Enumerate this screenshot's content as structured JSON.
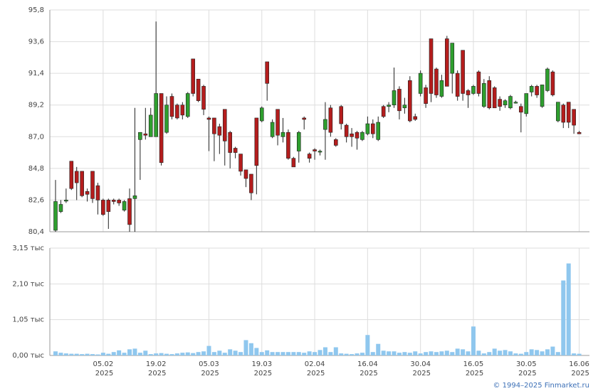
{
  "chart_data": [
    {
      "type": "candlestick",
      "up_color": "#2e9e2e",
      "down_color": "#b41d1d",
      "ylim": [
        80.4,
        95.8
      ],
      "yticks": [
        {
          "value": 80.4,
          "label": "80,4"
        },
        {
          "value": 82.6,
          "label": "82,6"
        },
        {
          "value": 84.8,
          "label": "84,8"
        },
        {
          "value": 87.0,
          "label": "87,0"
        },
        {
          "value": 89.2,
          "label": "89,2"
        },
        {
          "value": 91.4,
          "label": "91,4"
        },
        {
          "value": 93.6,
          "label": "93,6"
        },
        {
          "value": 95.8,
          "label": "95,8"
        }
      ],
      "open": [
        80.5,
        81.8,
        82.6,
        85.3,
        84.6,
        84.6,
        83.2,
        84.6,
        83.6,
        82.6,
        82.6,
        82.6,
        82.6,
        81.9,
        82.7,
        82.7,
        86.8,
        87.2,
        87.0,
        87.0,
        90.0,
        87.3,
        89.8,
        89.2,
        89.2,
        88.4,
        92.4,
        91.0,
        90.5,
        88.3,
        88.3,
        87.7,
        88.9,
        87.3,
        86.2,
        85.8,
        84.7,
        84.4,
        88.3,
        88.1,
        92.2,
        87.0,
        88.9,
        87.0,
        87.3,
        85.5,
        86.0,
        88.3,
        85.8,
        86.1,
        86.0,
        87.5,
        89.0,
        86.8,
        89.1,
        87.8,
        87.2,
        87.3,
        86.8,
        87.2,
        87.9,
        86.8,
        89.1,
        89.1,
        89.2,
        90.3,
        89.0,
        90.9,
        88.4,
        90.0,
        90.4,
        93.8,
        91.7,
        89.8,
        93.8,
        91.4,
        91.4,
        93.0,
        90.2,
        90.0,
        91.5,
        89.1,
        90.9,
        90.4,
        89.6,
        89.2,
        89.0,
        89.4,
        89.1,
        88.6,
        90.1,
        90.5,
        89.1,
        90.2,
        91.5,
        88.1,
        89.2,
        89.4,
        88.9,
        87.3
      ],
      "high": [
        84.0,
        82.6,
        83.4,
        85.3,
        84.9,
        84.6,
        83.4,
        84.6,
        83.8,
        82.7,
        82.7,
        82.7,
        82.7,
        82.6,
        83.4,
        89.0,
        87.3,
        89.0,
        89.0,
        95.0,
        90.0,
        89.8,
        90.0,
        89.3,
        89.4,
        90.1,
        92.4,
        91.0,
        90.6,
        88.4,
        88.3,
        87.9,
        88.9,
        87.4,
        86.3,
        85.8,
        84.7,
        84.4,
        88.3,
        89.1,
        92.2,
        88.2,
        88.9,
        88.3,
        87.5,
        85.6,
        87.4,
        88.4,
        85.9,
        86.2,
        86.1,
        89.4,
        89.2,
        86.9,
        89.2,
        87.9,
        87.6,
        87.4,
        87.4,
        88.4,
        88.2,
        88.4,
        89.2,
        89.4,
        91.8,
        90.5,
        89.7,
        91.2,
        88.6,
        91.6,
        90.6,
        93.8,
        91.8,
        91.3,
        94.0,
        93.5,
        91.6,
        93.0,
        90.3,
        90.6,
        91.6,
        91.0,
        91.2,
        90.5,
        89.8,
        89.6,
        89.9,
        89.5,
        89.3,
        90.0,
        90.6,
        90.6,
        90.6,
        91.8,
        91.6,
        89.4,
        89.3,
        89.4,
        88.9,
        87.4
      ],
      "low": [
        80.4,
        81.7,
        82.4,
        83.3,
        82.6,
        82.8,
        82.5,
        82.4,
        81.6,
        81.5,
        80.6,
        82.3,
        82.2,
        81.8,
        80.4,
        80.4,
        84.0,
        86.8,
        87.0,
        87.0,
        85.0,
        87.2,
        88.2,
        88.2,
        88.2,
        88.3,
        89.8,
        89.4,
        88.5,
        86.0,
        85.3,
        85.8,
        85.0,
        84.8,
        85.5,
        84.3,
        83.5,
        82.6,
        83.0,
        88.0,
        89.5,
        86.9,
        86.4,
        86.6,
        85.4,
        84.9,
        85.2,
        87.5,
        85.2,
        85.4,
        85.7,
        85.4,
        87.0,
        86.3,
        87.5,
        86.6,
        86.3,
        86.1,
        86.7,
        87.1,
        86.9,
        86.7,
        88.3,
        88.7,
        89.0,
        88.2,
        88.6,
        88.0,
        88.1,
        89.8,
        89.0,
        89.4,
        89.7,
        89.7,
        90.5,
        90.0,
        89.5,
        89.5,
        89.0,
        89.9,
        89.8,
        89.0,
        88.9,
        89.0,
        88.8,
        89.0,
        88.9,
        89.3,
        87.3,
        88.4,
        89.8,
        89.7,
        89.0,
        90.1,
        89.8,
        88.0,
        87.6,
        87.6,
        87.2,
        87.2
      ],
      "close": [
        82.5,
        82.3,
        82.6,
        83.4,
        83.8,
        82.9,
        83.0,
        82.7,
        82.6,
        81.6,
        81.8,
        82.5,
        82.4,
        82.5,
        80.9,
        82.9,
        87.3,
        87.1,
        88.5,
        90.0,
        85.2,
        89.2,
        88.4,
        88.3,
        88.5,
        90.0,
        90.0,
        89.5,
        88.9,
        88.2,
        87.2,
        87.1,
        86.7,
        85.9,
        85.9,
        84.6,
        84.1,
        83.1,
        85.0,
        89.0,
        90.7,
        88.0,
        87.1,
        87.3,
        85.5,
        84.9,
        87.3,
        88.2,
        85.5,
        86.0,
        86.0,
        88.2,
        87.3,
        86.4,
        87.9,
        87.0,
        87.0,
        86.9,
        87.3,
        87.9,
        87.2,
        88.0,
        88.4,
        89.2,
        90.2,
        88.8,
        89.2,
        88.1,
        88.2,
        91.4,
        89.3,
        90.0,
        89.9,
        90.9,
        90.5,
        93.5,
        89.8,
        90.0,
        89.9,
        90.5,
        90.0,
        90.7,
        89.0,
        89.0,
        89.1,
        89.5,
        89.8,
        89.4,
        88.7,
        90.0,
        90.5,
        89.9,
        90.6,
        91.7,
        89.9,
        89.4,
        88.0,
        88.0,
        87.8,
        87.2
      ]
    },
    {
      "type": "bar",
      "color": "#8fc7ee",
      "ylim": [
        0,
        3.15
      ],
      "yticks": [
        {
          "value": 0,
          "label": "0,00 тыс"
        },
        {
          "value": 1.05,
          "label": "1,05 тыс"
        },
        {
          "value": 2.1,
          "label": "2,10 тыс"
        },
        {
          "value": 3.15,
          "label": "3,15 тыс"
        }
      ],
      "values": [
        0.12,
        0.08,
        0.06,
        0.05,
        0.05,
        0.04,
        0.05,
        0.04,
        0.03,
        0.08,
        0.05,
        0.1,
        0.15,
        0.08,
        0.18,
        0.2,
        0.08,
        0.14,
        0.04,
        0.06,
        0.07,
        0.05,
        0.04,
        0.06,
        0.08,
        0.09,
        0.07,
        0.1,
        0.12,
        0.28,
        0.1,
        0.14,
        0.08,
        0.18,
        0.14,
        0.1,
        0.45,
        0.36,
        0.22,
        0.1,
        0.15,
        0.1,
        0.1,
        0.1,
        0.1,
        0.1,
        0.1,
        0.08,
        0.12,
        0.1,
        0.16,
        0.24,
        0.1,
        0.24,
        0.06,
        0.05,
        0.04,
        0.06,
        0.08,
        0.6,
        0.1,
        0.34,
        0.14,
        0.12,
        0.12,
        0.08,
        0.1,
        0.08,
        0.12,
        0.06,
        0.1,
        0.12,
        0.1,
        0.12,
        0.14,
        0.1,
        0.2,
        0.18,
        0.12,
        0.85,
        0.14,
        0.06,
        0.1,
        0.2,
        0.14,
        0.16,
        0.12,
        0.06,
        0.05,
        0.1,
        0.18,
        0.16,
        0.12,
        0.18,
        0.26,
        0.1,
        2.2,
        2.7,
        0.06,
        0.05
      ],
      "categories": [
        null,
        null,
        null,
        null,
        null,
        null,
        null,
        null,
        null,
        "05.02 2025",
        null,
        null,
        null,
        null,
        null,
        null,
        null,
        null,
        null,
        "19.02 2025",
        null,
        null,
        null,
        null,
        null,
        null,
        null,
        null,
        null,
        "05.03 2025",
        null,
        null,
        null,
        null,
        null,
        null,
        null,
        null,
        null,
        "19.03 2025",
        null,
        null,
        null,
        null,
        null,
        null,
        null,
        null,
        null,
        "02.04 2025",
        null,
        null,
        null,
        null,
        null,
        null,
        null,
        null,
        null,
        "16.04 2025",
        null,
        null,
        null,
        null,
        null,
        null,
        null,
        null,
        null,
        "30.04 2025",
        null,
        null,
        null,
        null,
        null,
        null,
        null,
        null,
        null,
        "16.05 2025",
        null,
        null,
        null,
        null,
        null,
        null,
        null,
        null,
        null,
        "30.05 2025",
        null,
        null,
        null,
        null,
        null,
        null,
        null,
        null,
        null,
        "16.06 2025"
      ]
    }
  ],
  "credit": "© 1994–2025 Finmarket.ru"
}
